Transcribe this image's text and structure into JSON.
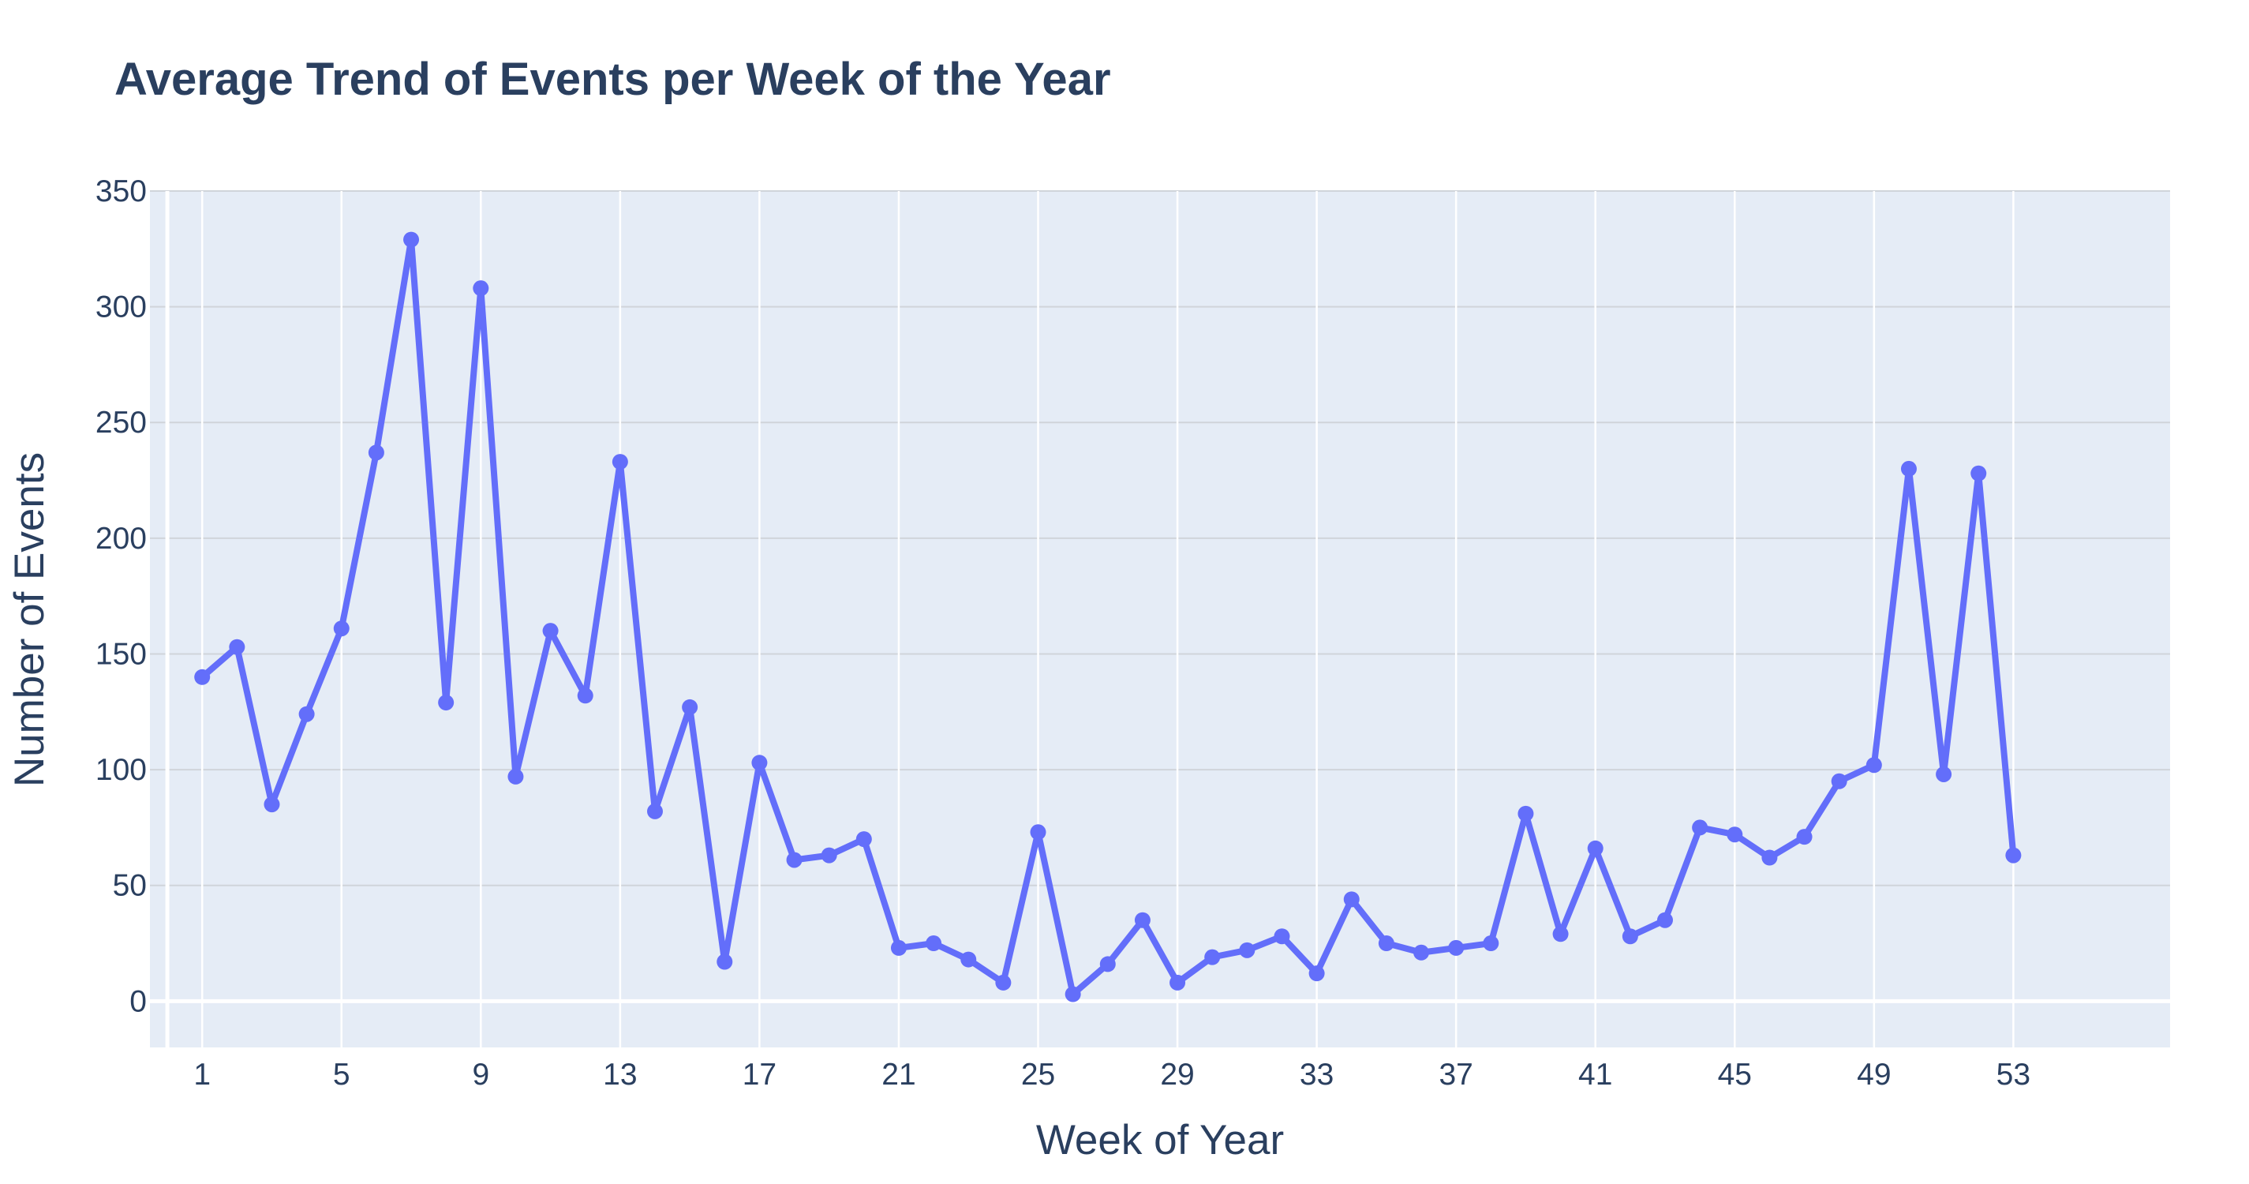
{
  "chart_data": {
    "type": "line",
    "title": "Average Trend of Events per Week of the Year",
    "xlabel": "Week of Year",
    "ylabel": "Number of Events",
    "xlim": [
      -0.5,
      57.5
    ],
    "ylim": [
      -20,
      350
    ],
    "x_ticks": [
      1,
      5,
      9,
      13,
      17,
      21,
      25,
      29,
      33,
      37,
      41,
      45,
      49,
      53
    ],
    "y_ticks": [
      0,
      50,
      100,
      150,
      200,
      250,
      300,
      350
    ],
    "grid": true,
    "colors": {
      "line": "#636efa",
      "plot_bg": "#e5ecf6",
      "grid": "#ffffff",
      "text": "#2a3f5f"
    },
    "series": [
      {
        "x": [
          1,
          2,
          3,
          4,
          5,
          6,
          7,
          8,
          9,
          10,
          11,
          12,
          13,
          14,
          15,
          16,
          17,
          18,
          19,
          20,
          21,
          22,
          23,
          24,
          25,
          26,
          27,
          28,
          29,
          30,
          31,
          32,
          33,
          34,
          35,
          36,
          37,
          38,
          39,
          40,
          41,
          42,
          43,
          44,
          45,
          46,
          47,
          48,
          49,
          50,
          51,
          52,
          53
        ],
        "y": [
          140,
          153,
          85,
          124,
          161,
          237,
          329,
          129,
          308,
          97,
          160,
          132,
          233,
          82,
          127,
          17,
          103,
          61,
          63,
          70,
          23,
          25,
          18,
          8,
          73,
          3,
          16,
          35,
          8,
          19,
          22,
          28,
          12,
          44,
          25,
          21,
          23,
          25,
          81,
          29,
          66,
          28,
          35,
          75,
          72,
          62,
          71,
          95,
          102,
          230,
          98,
          228,
          63
        ]
      }
    ]
  }
}
